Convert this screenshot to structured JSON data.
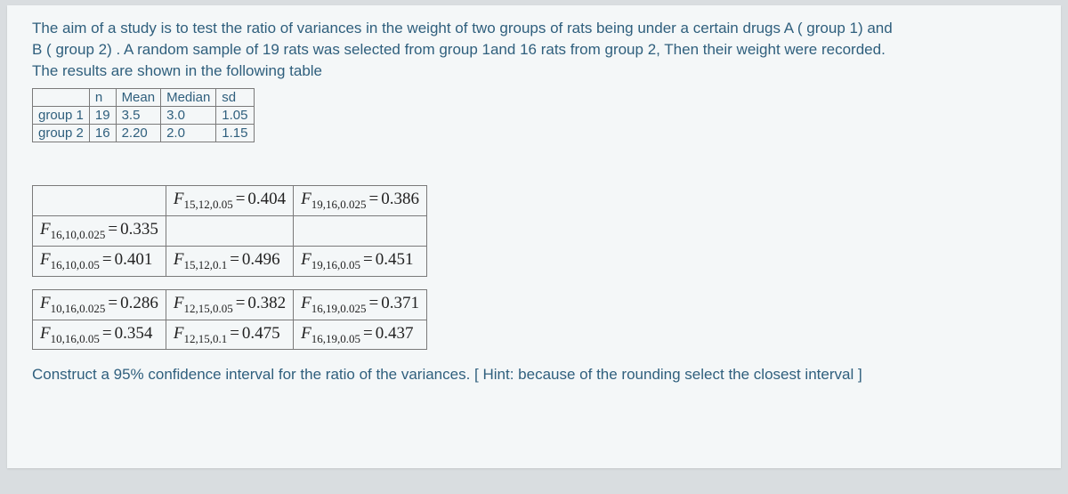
{
  "prompt": {
    "line1": "The aim of a study is to test the ratio of variances in the weight of two groups of rats being under a certain drugs A ( group 1) and",
    "line2": "B ( group 2) . A random sample of 19 rats was selected from group 1and 16 rats from group 2, Then their weight were recorded.",
    "line3": "The results are shown in the following table"
  },
  "datatable": {
    "headers": [
      "",
      "n",
      "Mean",
      "Median",
      "sd"
    ],
    "rows": [
      [
        "group 1",
        "19",
        "3.5",
        "3.0",
        "1.05"
      ],
      [
        "group 2",
        "16",
        "2.20",
        "2.0",
        "1.15"
      ]
    ]
  },
  "ftable": {
    "block1": [
      [
        "",
        "F15,12,0.05 = 0.404",
        "F19,16,0.025 = 0.386"
      ],
      [
        "F16,10,0.025 = 0.335",
        "",
        ""
      ],
      [
        "F16,10,0.05 = 0.401",
        "F15,12,0.1 = 0.496",
        "F19,16,0.05 = 0.451"
      ]
    ],
    "block2": [
      [
        "F10,16,0.025 = 0.286",
        "F12,15,0.05 = 0.382",
        "F16,19,0.025 = 0.371"
      ],
      [
        "F10,16,0.05 = 0.354",
        "F12,15,0.1 = 0.475",
        "F16,19,0.05 = 0.437"
      ]
    ]
  },
  "question": "Construct a 95% confidence interval for the ratio of the variances. [ Hint: because of the rounding select the closest interval ]"
}
